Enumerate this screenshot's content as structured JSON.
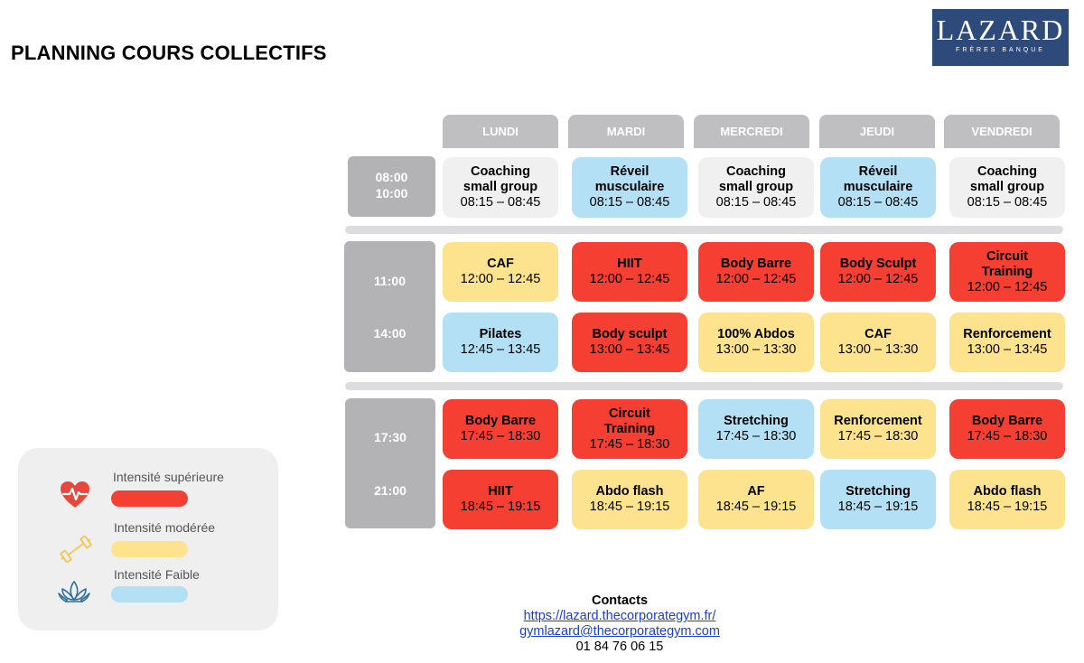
{
  "title": "PLANNING COURS COLLECTIFS",
  "logo": {
    "name": "LAZARD",
    "sub": "FRÈRES BANQUE"
  },
  "days": [
    "LUNDI",
    "MARDI",
    "MERCREDI",
    "JEUDI",
    "VENDREDI"
  ],
  "times": {
    "block1": [
      "08:00",
      "10:00"
    ],
    "block2": [
      "11:00",
      "14:00"
    ],
    "block3": [
      "17:30",
      "21:00"
    ]
  },
  "rows": [
    [
      {
        "name": "Coaching small group",
        "hours": "08:15 – 08:45",
        "intensity": "none"
      },
      {
        "name": "Réveil musculaire",
        "hours": "08:15 – 08:45",
        "intensity": "low"
      },
      {
        "name": "Coaching small group",
        "hours": "08:15 – 08:45",
        "intensity": "none"
      },
      {
        "name": "Réveil musculaire",
        "hours": "08:15 – 08:45",
        "intensity": "low"
      },
      {
        "name": "Coaching small group",
        "hours": "08:15 – 08:45",
        "intensity": "none"
      }
    ],
    [
      {
        "name": "CAF",
        "hours": "12:00 – 12:45",
        "intensity": "moderate"
      },
      {
        "name": "HIIT",
        "hours": "12:00 – 12:45",
        "intensity": "high"
      },
      {
        "name": "Body Barre",
        "hours": "12:00 – 12:45",
        "intensity": "high"
      },
      {
        "name": "Body Sculpt",
        "hours": "12:00 – 12:45",
        "intensity": "high"
      },
      {
        "name": "Circuit Training",
        "hours": "12:00 – 12:45",
        "intensity": "high"
      }
    ],
    [
      {
        "name": "Pilates",
        "hours": "12:45 – 13:45",
        "intensity": "low"
      },
      {
        "name": "Body sculpt",
        "hours": "13:00 – 13:45",
        "intensity": "high"
      },
      {
        "name": "100% Abdos",
        "hours": "13:00 – 13:30",
        "intensity": "moderate"
      },
      {
        "name": "CAF",
        "hours": "13:00 – 13:30",
        "intensity": "moderate"
      },
      {
        "name": "Renforcement",
        "hours": "13:00 – 13:45",
        "intensity": "moderate"
      }
    ],
    [
      {
        "name": "Body Barre",
        "hours": "17:45 – 18:30",
        "intensity": "high"
      },
      {
        "name": "Circuit Training",
        "hours": "17:45 – 18:30",
        "intensity": "high"
      },
      {
        "name": "Stretching",
        "hours": "17:45 – 18:30",
        "intensity": "low"
      },
      {
        "name": "Renforcement",
        "hours": "17:45 – 18:30",
        "intensity": "moderate"
      },
      {
        "name": "Body Barre",
        "hours": "17:45 – 18:30",
        "intensity": "high"
      }
    ],
    [
      {
        "name": "HIIT",
        "hours": "18:45 – 19:15",
        "intensity": "high"
      },
      {
        "name": "Abdo flash",
        "hours": "18:45 – 19:15",
        "intensity": "moderate"
      },
      {
        "name": "AF",
        "hours": "18:45 – 19:15",
        "intensity": "moderate"
      },
      {
        "name": "Stretching",
        "hours": "18:45 – 19:15",
        "intensity": "low"
      },
      {
        "name": "Abdo flash",
        "hours": "18:45 – 19:15",
        "intensity": "moderate"
      }
    ]
  ],
  "legend": {
    "high": {
      "label": "Intensité supérieure",
      "color": "#f43f32",
      "icon": "heart-pulse-icon"
    },
    "moderate": {
      "label": "Intensité modérée",
      "color": "#fde38e",
      "icon": "dumbbell-icon"
    },
    "low": {
      "label": "Intensité Faible",
      "color": "#b3e0f4",
      "icon": "lotus-icon"
    }
  },
  "contacts": {
    "title": "Contacts",
    "url": "https://lazard.thecorporategym.fr/",
    "email": "gymlazard@thecorporategym.com",
    "phone": "01 84 76 06 15"
  }
}
